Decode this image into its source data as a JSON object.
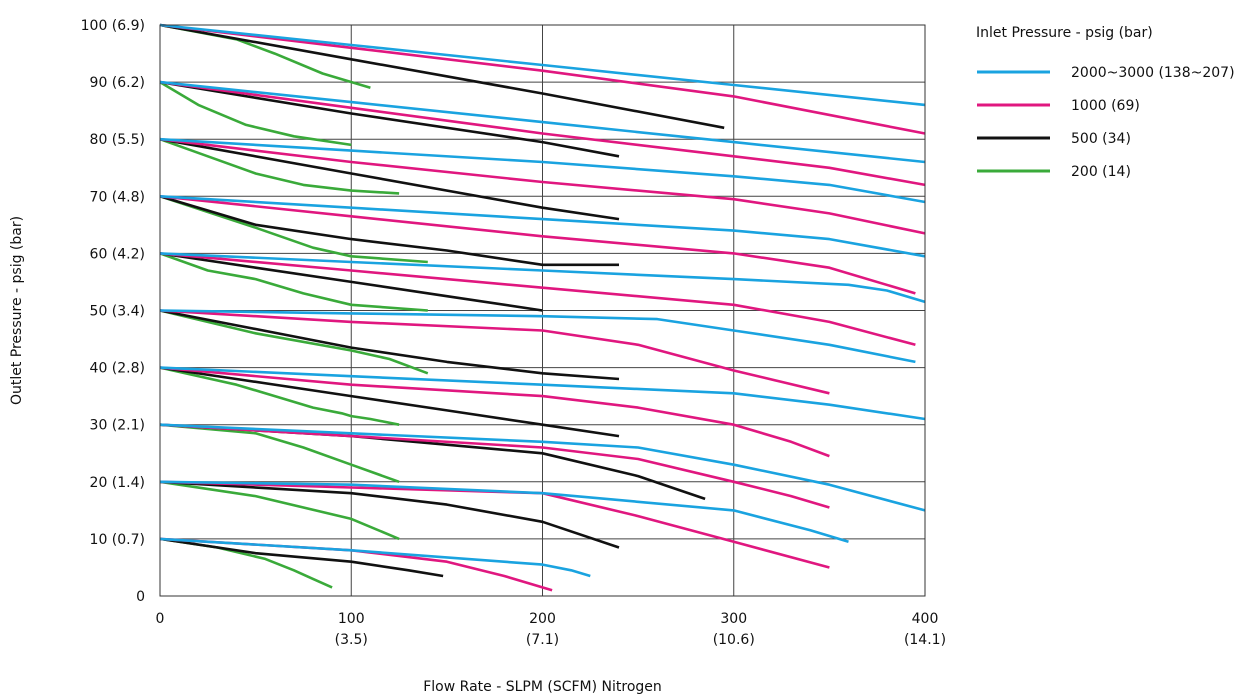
{
  "chart_data": {
    "type": "line",
    "xlabel": "Flow Rate - SLPM (SCFM) Nitrogen",
    "ylabel": "Outlet Pressure - psig (bar)",
    "xlim": [
      0,
      400
    ],
    "ylim": [
      0,
      100
    ],
    "grid": true,
    "x_ticks": [
      {
        "value": 0,
        "label": "0",
        "sub": ""
      },
      {
        "value": 100,
        "label": "100",
        "sub": "(3.5)"
      },
      {
        "value": 200,
        "label": "200",
        "sub": "(7.1)"
      },
      {
        "value": 300,
        "label": "300",
        "sub": "(10.6)"
      },
      {
        "value": 400,
        "label": "400",
        "sub": "(14.1)"
      }
    ],
    "y_ticks": [
      {
        "value": 0,
        "label": "0"
      },
      {
        "value": 10,
        "label": "10 (0.7)"
      },
      {
        "value": 20,
        "label": "20 (1.4)"
      },
      {
        "value": 30,
        "label": "30 (2.1)"
      },
      {
        "value": 40,
        "label": "40 (2.8)"
      },
      {
        "value": 50,
        "label": "50 (3.4)"
      },
      {
        "value": 60,
        "label": "60 (4.2)"
      },
      {
        "value": 70,
        "label": "70 (4.8)"
      },
      {
        "value": 80,
        "label": "80 (5.5)"
      },
      {
        "value": 90,
        "label": "90 (6.2)"
      },
      {
        "value": 100,
        "label": "100 (6.9)"
      }
    ],
    "legend": {
      "title": "Inlet Pressure - psig (bar)",
      "placement": "right",
      "entries": [
        {
          "name": "2000~3000 (138~207)",
          "color": "#1aa3e0"
        },
        {
          "name": "1000 (69)",
          "color": "#e0177f"
        },
        {
          "name": "500 (34)",
          "color": "#111111"
        },
        {
          "name": "200 (14)",
          "color": "#3aaa3a"
        }
      ]
    },
    "series": [
      {
        "name": "2000~3000 (138~207)",
        "color": "#1aa3e0",
        "curves": [
          {
            "x": [
              0,
              100,
              200,
              300,
              400
            ],
            "y": [
              100,
              96.5,
              93,
              89.5,
              86
            ]
          },
          {
            "x": [
              0,
              100,
              200,
              300,
              400
            ],
            "y": [
              90,
              86.5,
              83,
              79.5,
              76
            ]
          },
          {
            "x": [
              0,
              100,
              200,
              300,
              350,
              400
            ],
            "y": [
              80,
              78,
              76,
              73.5,
              72,
              69
            ]
          },
          {
            "x": [
              0,
              100,
              200,
              300,
              350,
              400
            ],
            "y": [
              70,
              68,
              66,
              64,
              62.5,
              59.5
            ]
          },
          {
            "x": [
              0,
              100,
              200,
              300,
              360,
              380,
              400
            ],
            "y": [
              60,
              58.5,
              57,
              55.5,
              54.5,
              53.5,
              51.5
            ]
          },
          {
            "x": [
              0,
              100,
              200,
              260,
              300,
              350,
              395
            ],
            "y": [
              50,
              49.5,
              49,
              48.5,
              46.5,
              44,
              41
            ]
          },
          {
            "x": [
              0,
              100,
              200,
              300,
              350,
              400
            ],
            "y": [
              40,
              38.5,
              37,
              35.5,
              33.5,
              31
            ]
          },
          {
            "x": [
              0,
              100,
              200,
              250,
              300,
              350,
              400
            ],
            "y": [
              30,
              28.5,
              27,
              26,
              23,
              19.5,
              15
            ]
          },
          {
            "x": [
              0,
              100,
              200,
              300,
              340,
              360
            ],
            "y": [
              20,
              19.5,
              18,
              15,
              11.5,
              9.5
            ]
          },
          {
            "x": [
              0,
              100,
              200,
              215,
              225
            ],
            "y": [
              10,
              8,
              5.5,
              4.5,
              3.5
            ]
          }
        ]
      },
      {
        "name": "1000 (69)",
        "color": "#e0177f",
        "curves": [
          {
            "x": [
              0,
              100,
              200,
              300,
              400
            ],
            "y": [
              100,
              96,
              92,
              87.5,
              81
            ]
          },
          {
            "x": [
              0,
              100,
              200,
              300,
              350,
              400
            ],
            "y": [
              90,
              85.5,
              81,
              77,
              75,
              72
            ]
          },
          {
            "x": [
              0,
              100,
              200,
              300,
              350,
              400
            ],
            "y": [
              80,
              76,
              72.5,
              69.5,
              67,
              63.5
            ]
          },
          {
            "x": [
              0,
              100,
              200,
              300,
              350,
              395
            ],
            "y": [
              70,
              66.5,
              63,
              60,
              57.5,
              53
            ]
          },
          {
            "x": [
              0,
              100,
              200,
              300,
              350,
              395
            ],
            "y": [
              60,
              57,
              54,
              51,
              48,
              44
            ]
          },
          {
            "x": [
              0,
              100,
              200,
              250,
              300,
              325,
              350
            ],
            "y": [
              50,
              48,
              46.5,
              44,
              39.5,
              37.5,
              35.5
            ]
          },
          {
            "x": [
              0,
              100,
              200,
              250,
              300,
              330,
              350
            ],
            "y": [
              40,
              37,
              35,
              33,
              30,
              27,
              24.5
            ]
          },
          {
            "x": [
              0,
              100,
              200,
              250,
              300,
              330,
              350
            ],
            "y": [
              30,
              28,
              26,
              24,
              20,
              17.5,
              15.5
            ]
          },
          {
            "x": [
              0,
              100,
              200,
              250,
              300,
              350
            ],
            "y": [
              20,
              19,
              18,
              14,
              9.5,
              5
            ]
          },
          {
            "x": [
              0,
              100,
              150,
              180,
              205
            ],
            "y": [
              10,
              8,
              6,
              3.5,
              1
            ]
          }
        ]
      },
      {
        "name": "500 (34)",
        "color": "#111111",
        "curves": [
          {
            "x": [
              0,
              100,
              200,
              295
            ],
            "y": [
              100,
              94,
              88,
              82
            ]
          },
          {
            "x": [
              0,
              100,
              200,
              240
            ],
            "y": [
              90,
              84.5,
              79.5,
              77
            ]
          },
          {
            "x": [
              0,
              100,
              200,
              240
            ],
            "y": [
              80,
              74,
              68,
              66
            ]
          },
          {
            "x": [
              0,
              50,
              100,
              150,
              200,
              240
            ],
            "y": [
              70,
              65,
              62.5,
              60.5,
              58,
              58
            ]
          },
          {
            "x": [
              0,
              50,
              100,
              150,
              200
            ],
            "y": [
              60,
              57.5,
              55,
              52.5,
              50
            ]
          },
          {
            "x": [
              0,
              100,
              150,
              200,
              240
            ],
            "y": [
              50,
              43.5,
              41,
              39,
              38
            ]
          },
          {
            "x": [
              0,
              100,
              150,
              200,
              240
            ],
            "y": [
              40,
              35,
              32.5,
              30,
              28
            ]
          },
          {
            "x": [
              0,
              100,
              200,
              250,
              285
            ],
            "y": [
              30,
              28,
              25,
              21,
              17
            ]
          },
          {
            "x": [
              0,
              100,
              150,
              200,
              240
            ],
            "y": [
              20,
              18,
              16,
              13,
              8.5
            ]
          },
          {
            "x": [
              0,
              50,
              100,
              130,
              148
            ],
            "y": [
              10,
              7.5,
              6,
              4.5,
              3.5
            ]
          }
        ]
      },
      {
        "name": "200 (14)",
        "color": "#3aaa3a",
        "curves": [
          {
            "x": [
              0,
              40,
              60,
              85,
              110
            ],
            "y": [
              100,
              97.5,
              95,
              91.5,
              89
            ]
          },
          {
            "x": [
              0,
              20,
              45,
              70,
              100
            ],
            "y": [
              90,
              86,
              82.5,
              80.5,
              79
            ]
          },
          {
            "x": [
              0,
              25,
              50,
              75,
              100,
              125
            ],
            "y": [
              80,
              77,
              74,
              72,
              71,
              70.5
            ]
          },
          {
            "x": [
              0,
              50,
              80,
              100,
              140
            ],
            "y": [
              70,
              64.5,
              61,
              59.5,
              58.5
            ]
          },
          {
            "x": [
              0,
              25,
              50,
              75,
              100,
              140
            ],
            "y": [
              60,
              57,
              55.5,
              53,
              51,
              50
            ]
          },
          {
            "x": [
              0,
              50,
              100,
              120,
              140
            ],
            "y": [
              50,
              46,
              43,
              41.5,
              39
            ]
          },
          {
            "x": [
              0,
              40,
              60,
              80,
              95,
              100,
              110,
              125
            ],
            "y": [
              40,
              37,
              35,
              33,
              32,
              31.5,
              31,
              30
            ]
          },
          {
            "x": [
              0,
              50,
              75,
              100,
              125
            ],
            "y": [
              30,
              28.5,
              26,
              23,
              20
            ]
          },
          {
            "x": [
              0,
              50,
              100,
              125
            ],
            "y": [
              20,
              17.5,
              13.5,
              10
            ]
          },
          {
            "x": [
              0,
              30,
              55,
              70,
              80,
              90
            ],
            "y": [
              10,
              8.5,
              6.5,
              4.5,
              3,
              1.5
            ]
          }
        ]
      }
    ]
  }
}
